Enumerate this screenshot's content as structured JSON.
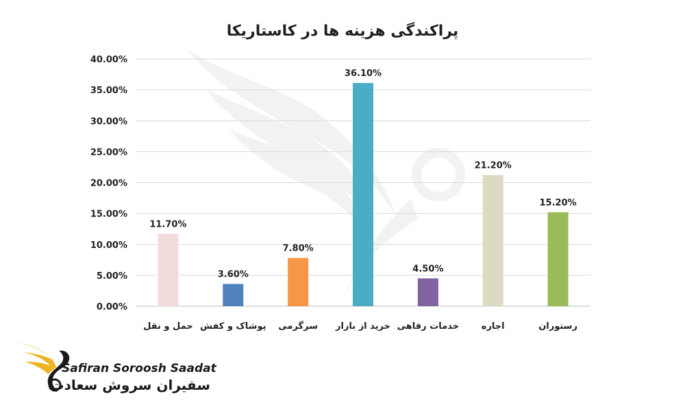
{
  "chart_data": {
    "type": "bar",
    "title": "پراکندگی هزینه ها در کاستاریکا",
    "categories": [
      "حمل و نقل",
      "پوشاک و کفش",
      "سرگرمی",
      "خرید از بازار",
      "خدمات رفاهی",
      "اجاره",
      "رستوران"
    ],
    "values": [
      11.7,
      3.6,
      7.8,
      36.1,
      4.5,
      21.2,
      15.2
    ],
    "value_labels": [
      "11.70%",
      "3.60%",
      "7.80%",
      "36.10%",
      "4.50%",
      "21.20%",
      "15.20%"
    ],
    "colors": [
      "#f2dcdb",
      "#4f81bd",
      "#f79646",
      "#4bacc6",
      "#8064a2",
      "#ddd9c3",
      "#9bbb59"
    ],
    "ylim": [
      0,
      40
    ],
    "yticks": [
      0,
      5,
      10,
      15,
      20,
      25,
      30,
      35,
      40
    ],
    "ytick_labels": [
      "0.00%",
      "5.00%",
      "10.00%",
      "15.00%",
      "20.00%",
      "25.00%",
      "30.00%",
      "35.00%",
      "40.00%"
    ],
    "grid": true,
    "legend": "none"
  },
  "logo": {
    "name_en": "Safiran Soroosh Saadat",
    "name_fa": "سفیران سروش سعادت",
    "accent_color": "#f0b323",
    "icon": "phoenix-logo-icon"
  }
}
